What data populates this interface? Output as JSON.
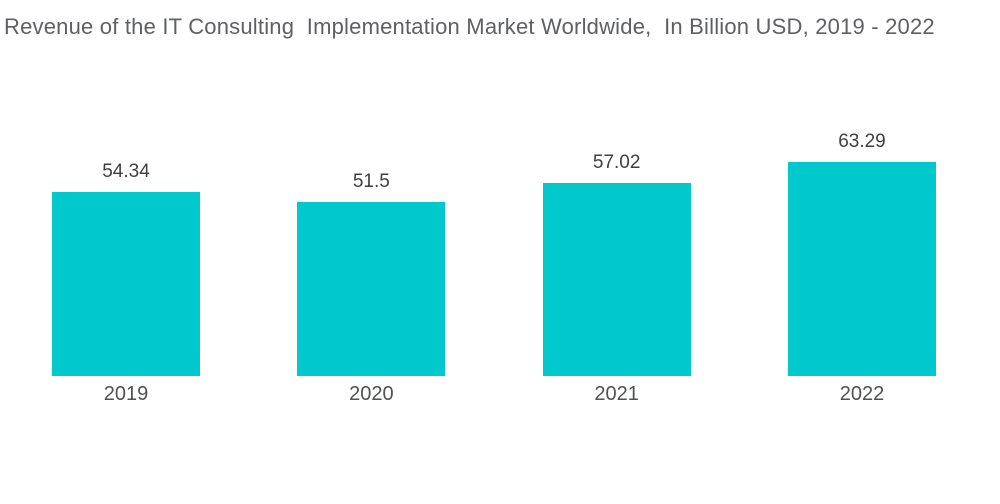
{
  "title": "Revenue of the IT Consulting  Implementation Market Worldwide,  In Billion USD, 2019 - 2022",
  "colors": {
    "bar": "#00C8CD",
    "title_text": "#5E6063",
    "value_label": "#3E3F41",
    "category_label": "#4F5153",
    "background": "#FFFFFF"
  },
  "chart_data": {
    "type": "bar",
    "title": "Revenue of the IT Consulting  Implementation Market Worldwide,  In Billion USD, 2019 - 2022",
    "categories": [
      "2019",
      "2020",
      "2021",
      "2022"
    ],
    "values": [
      54.34,
      51.5,
      57.02,
      63.29
    ],
    "value_labels": [
      "54.34",
      "51.5",
      "57.02",
      "63.29"
    ],
    "series_name": "Revenue",
    "unit": "Billion USD",
    "xlabel": "",
    "ylabel": "",
    "ylim": [
      0,
      84.5
    ],
    "grid": false,
    "legend": false,
    "axes_shown": false,
    "bar_color": "#00C8CD"
  }
}
